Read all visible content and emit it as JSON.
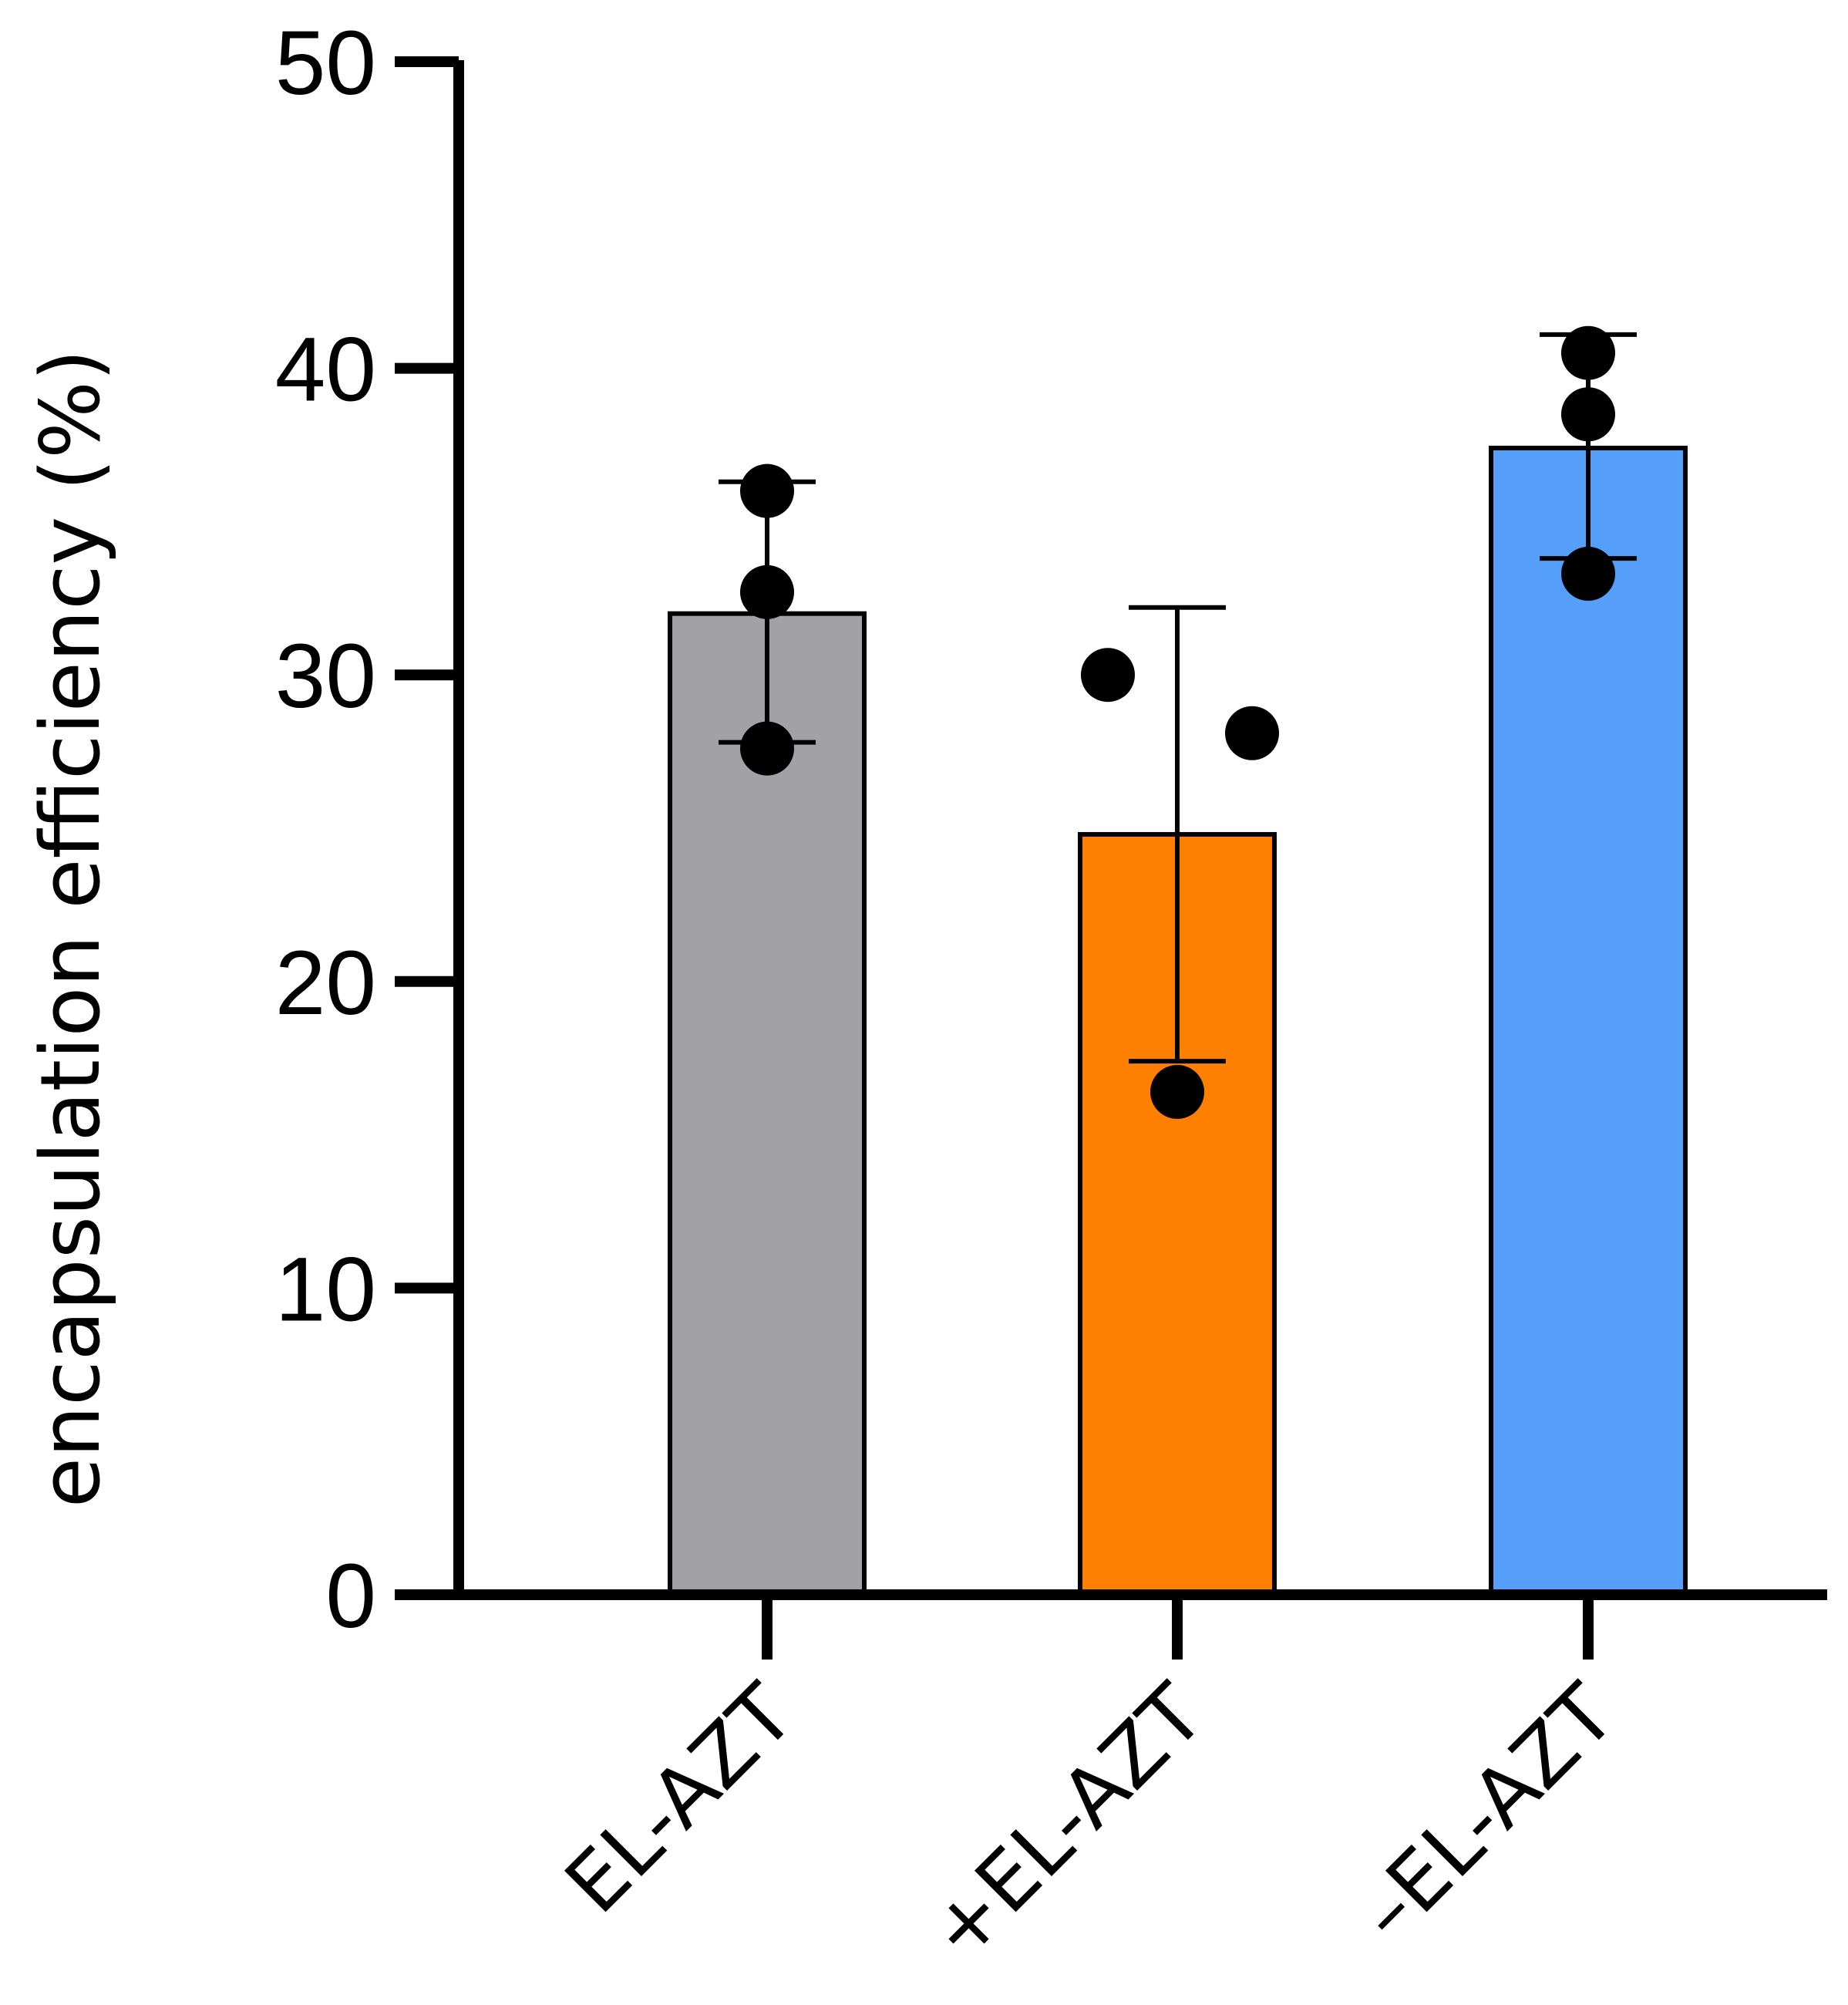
{
  "chart_data": {
    "type": "bar",
    "title": "",
    "xlabel": "",
    "ylabel": "encapsulation efficiency (%)",
    "ylim": [
      0,
      50
    ],
    "yticks": [
      0,
      10,
      20,
      30,
      40,
      50
    ],
    "ytick_labels": [
      "0",
      "10",
      "20",
      "30",
      "40",
      "50"
    ],
    "grid": false,
    "legend": "none",
    "categories": [
      "EL-AZT",
      "+EL-AZT",
      "–EL-AZT"
    ],
    "values": [
      32.0,
      24.8,
      37.4
    ],
    "error_low": [
      27.8,
      17.4,
      33.8
    ],
    "error_high": [
      36.3,
      32.2,
      41.1
    ],
    "points": [
      [
        36.0,
        32.7,
        27.6
      ],
      [
        30.0,
        28.1,
        16.4
      ],
      [
        40.5,
        38.5,
        33.3
      ]
    ],
    "colors": [
      "#a2a1a6",
      "#ff7f00",
      "#559ffb"
    ]
  }
}
